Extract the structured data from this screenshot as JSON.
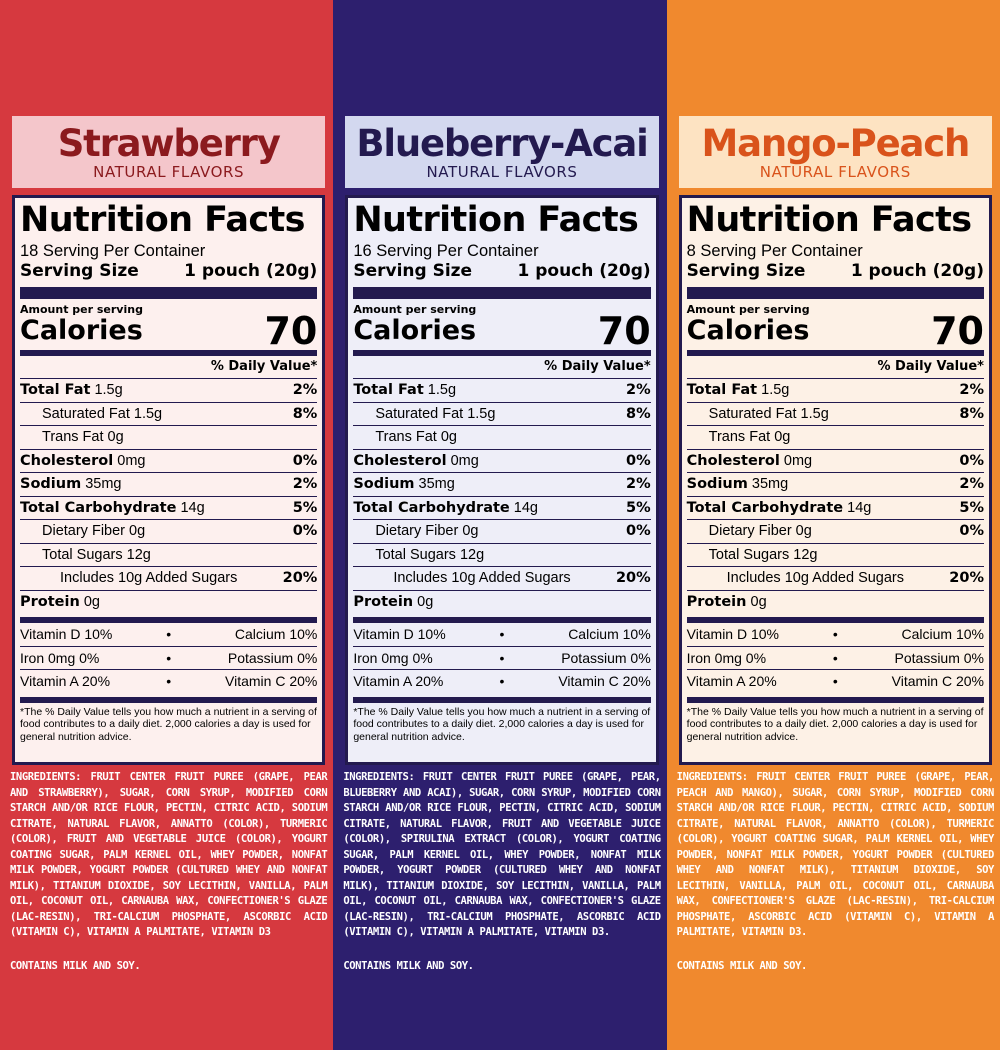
{
  "panels": [
    {
      "id": "strawberry",
      "flavor": "Strawberry",
      "subtitle": "NATURAL FLAVORS",
      "colors": {
        "background": "#d6393f",
        "flavor_box": "#f4c6cb",
        "flavor_text": "#8b1a1e",
        "label_bg": "#fdf0ee",
        "label_border": "#231a4f",
        "rule": "#231a4f"
      },
      "nutrition": {
        "title": "Nutrition Facts",
        "servings": "18 Serving Per Container",
        "serving_size_label": "Serving Size",
        "serving_size_value": "1 pouch (20g)",
        "amount_per_serving": "Amount per serving",
        "calories_label": "Calories",
        "calories_value": "70",
        "dv_header": "% Daily Value*",
        "rows": [
          {
            "name": "Total Fat",
            "amount": "1.5g",
            "dv": "2%"
          },
          {
            "name": "Saturated Fat 1.5g",
            "dv": "8%"
          },
          {
            "name": "Trans Fat 0g",
            "dv": ""
          },
          {
            "name": "Cholesterol",
            "amount": "0mg",
            "dv": "0%"
          },
          {
            "name": "Sodium",
            "amount": "35mg",
            "dv": "2%"
          },
          {
            "name": "Total Carbohydrate",
            "amount": "14g",
            "dv": "5%"
          },
          {
            "name": "Dietary Fiber 0g",
            "dv": "0%"
          },
          {
            "name": "Total Sugars 12g",
            "dv": ""
          },
          {
            "name": "Includes 10g Added Sugars",
            "dv": "20%"
          },
          {
            "name": "Protein",
            "amount": "0g",
            "dv": ""
          }
        ],
        "vitamins": [
          {
            "left": "Vitamin D  10%",
            "right": "Calcium  10%"
          },
          {
            "left": "Iron 0mg 0%",
            "right": "Potassium 0%"
          },
          {
            "left": "Vitamin A 20%",
            "right": "Vitamin C 20%"
          }
        ],
        "footnote": "*The % Daily Value tells you how much a nutrient in a serving of food contributes to a daily diet. 2,000 calories a day is used for general nutrition advice."
      },
      "ingredients": "INGREDIENTS: FRUIT CENTER FRUIT PUREE (GRAPE, PEAR AND STRAWBERRY), SUGAR, CORN SYRUP, MODIFIED CORN STARCH AND/OR RICE FLOUR, PECTIN, CITRIC ACID, SODIUM CITRATE, NATURAL FLAVOR, ANNATTO (COLOR), TURMERIC (COLOR), FRUIT AND VEGETABLE JUICE (COLOR), YOGURT COATING SUGAR, PALM KERNEL OIL, WHEY POWDER, NONFAT MILK POWDER, YOGURT POWDER (CULTURED WHEY AND NONFAT MILK), TITANIUM DIOXIDE, SOY LECITHIN, VANILLA, PALM OIL, COCONUT OIL, CARNAUBA WAX, CONFECTIONER'S GLAZE (LAC-RESIN), TRI-CALCIUM PHOSPHATE, ASCORBIC ACID (VITAMIN C), VITAMIN A PALMITATE, VITAMIN D3",
      "contains": "CONTAINS MILK AND SOY."
    },
    {
      "id": "blueberry-acai",
      "flavor": "Blueberry-Acai",
      "subtitle": "NATURAL FLAVORS",
      "colors": {
        "background": "#2d1f6e",
        "flavor_box": "#d3d8ef",
        "flavor_text": "#231a4f",
        "label_bg": "#eeeef8",
        "label_border": "#231a4f",
        "rule": "#231a4f"
      },
      "nutrition": {
        "title": "Nutrition Facts",
        "servings": "16 Serving Per Container",
        "serving_size_label": "Serving Size",
        "serving_size_value": "1 pouch (20g)",
        "amount_per_serving": "Amount per serving",
        "calories_label": "Calories",
        "calories_value": "70",
        "dv_header": "% Daily Value*",
        "rows": [
          {
            "name": "Total Fat",
            "amount": "1.5g",
            "dv": "2%"
          },
          {
            "name": "Saturated Fat 1.5g",
            "dv": "8%"
          },
          {
            "name": "Trans Fat 0g",
            "dv": ""
          },
          {
            "name": "Cholesterol",
            "amount": "0mg",
            "dv": "0%"
          },
          {
            "name": "Sodium",
            "amount": "35mg",
            "dv": "2%"
          },
          {
            "name": "Total Carbohydrate",
            "amount": "14g",
            "dv": "5%"
          },
          {
            "name": "Dietary Fiber 0g",
            "dv": "0%"
          },
          {
            "name": "Total Sugars 12g",
            "dv": ""
          },
          {
            "name": "Includes 10g Added Sugars",
            "dv": "20%"
          },
          {
            "name": "Protein",
            "amount": "0g",
            "dv": ""
          }
        ],
        "vitamins": [
          {
            "left": "Vitamin D  10%",
            "right": "Calcium  10%"
          },
          {
            "left": "Iron 0mg 0%",
            "right": "Potassium 0%"
          },
          {
            "left": "Vitamin A 20%",
            "right": "Vitamin C 20%"
          }
        ],
        "footnote": "*The % Daily Value tells you how much a nutrient in a serving of food contributes to a daily diet. 2,000 calories a day is used for general nutrition advice."
      },
      "ingredients": "INGREDIENTS: FRUIT CENTER FRUIT PUREE (GRAPE, PEAR, BLUEBERRY AND ACAI), SUGAR, CORN SYRUP, MODIFIED CORN STARCH AND/OR RICE FLOUR, PECTIN, CITRIC ACID, SODIUM CITRATE, NATURAL FLAVOR, FRUIT AND VEGETABLE JUICE (COLOR), SPIRULINA EXTRACT (COLOR), YOGURT COATING SUGAR, PALM KERNEL OIL, WHEY POWDER, NONFAT MILK POWDER, YOGURT POWDER (CULTURED WHEY AND NONFAT MILK), TITANIUM DIOXIDE, SOY LECITHIN, VANILLA, PALM OIL, COCONUT OIL, CARNAUBA WAX, CONFECTIONER'S GLAZE (LAC-RESIN), TRI-CALCIUM PHOSPHATE, ASCORBIC ACID (VITAMIN C), VITAMIN A PALMITATE, VITAMIN D3.",
      "contains": "CONTAINS MILK AND SOY."
    },
    {
      "id": "mango-peach",
      "flavor": "Mango-Peach",
      "subtitle": "NATURAL FLAVORS",
      "colors": {
        "background": "#f0892e",
        "flavor_box": "#fde3c2",
        "flavor_text": "#d9531b",
        "label_bg": "#fdf1e6",
        "label_border": "#231a4f",
        "rule": "#231a4f"
      },
      "nutrition": {
        "title": "Nutrition Facts",
        "servings": "8 Serving Per Container",
        "serving_size_label": "Serving Size",
        "serving_size_value": "1 pouch (20g)",
        "amount_per_serving": "Amount per serving",
        "calories_label": "Calories",
        "calories_value": "70",
        "dv_header": "% Daily Value*",
        "rows": [
          {
            "name": "Total Fat",
            "amount": "1.5g",
            "dv": "2%"
          },
          {
            "name": "Saturated Fat 1.5g",
            "dv": "8%"
          },
          {
            "name": "Trans Fat 0g",
            "dv": ""
          },
          {
            "name": "Cholesterol",
            "amount": "0mg",
            "dv": "0%"
          },
          {
            "name": "Sodium",
            "amount": "35mg",
            "dv": "2%"
          },
          {
            "name": "Total Carbohydrate",
            "amount": "14g",
            "dv": "5%"
          },
          {
            "name": "Dietary Fiber 0g",
            "dv": "0%"
          },
          {
            "name": "Total Sugars 12g",
            "dv": ""
          },
          {
            "name": "Includes 10g Added Sugars",
            "dv": "20%"
          },
          {
            "name": "Protein",
            "amount": "0g",
            "dv": ""
          }
        ],
        "vitamins": [
          {
            "left": "Vitamin D  10%",
            "right": "Calcium  10%"
          },
          {
            "left": "Iron 0mg 0%",
            "right": "Potassium 0%"
          },
          {
            "left": "Vitamin A 20%",
            "right": "Vitamin C 20%"
          }
        ],
        "footnote": "*The % Daily Value tells you how much a nutrient in a serving of food contributes to a daily diet. 2,000 calories a day is used for general nutrition advice."
      },
      "ingredients": "INGREDIENTS: FRUIT CENTER FRUIT PUREE (GRAPE, PEAR, PEACH AND MANGO), SUGAR, CORN SYRUP, MODIFIED CORN STARCH AND/OR RICE FLOUR, PECTIN, CITRIC ACID, SODIUM CITRATE, NATURAL FLAVOR, ANNATTO (COLOR), TURMERIC (COLOR), YOGURT COATING SUGAR, PALM KERNEL OIL, WHEY POWDER, NONFAT MILK POWDER, YOGURT POWDER (CULTURED WHEY AND NONFAT MILK), TITANIUM DIOXIDE, SOY LECITHIN, VANILLA, PALM OIL, COCONUT OIL, CARNAUBA WAX, CONFECTIONER'S GLAZE (LAC-RESIN), TRI-CALCIUM PHOSPHATE, ASCORBIC ACID (VITAMIN C), VITAMIN A PALMITATE, VITAMIN D3.",
      "contains": "CONTAINS MILK AND SOY."
    }
  ]
}
